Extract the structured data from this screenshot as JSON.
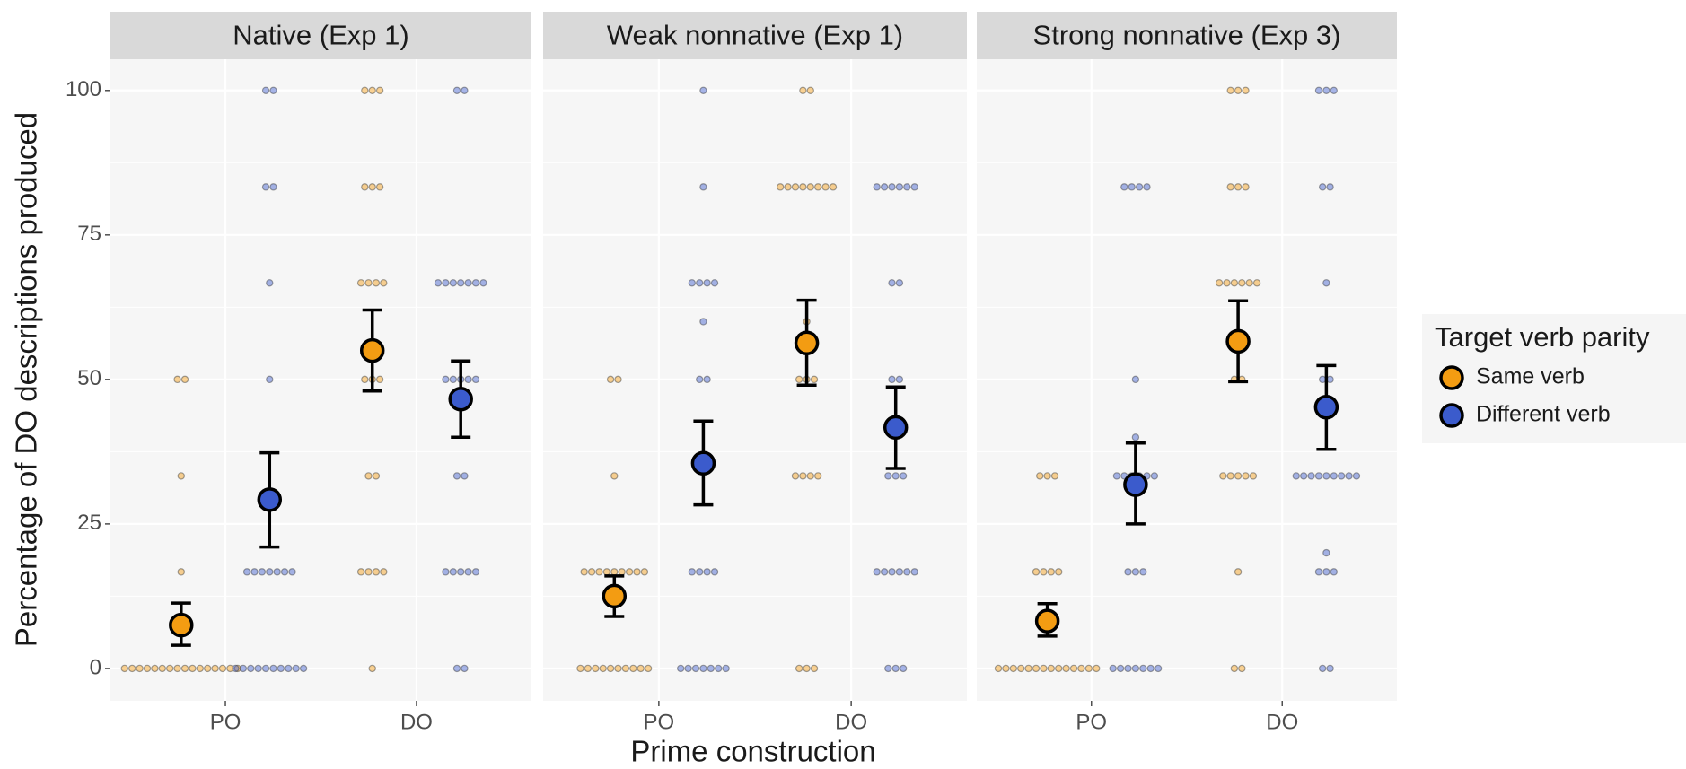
{
  "chart_data": {
    "type": "dotplot",
    "ylabel": "Percentage of DO descriptions produced",
    "xlabel": "Prime construction",
    "ylim": [
      -5.6,
      105.4
    ],
    "yticks": [
      0,
      25,
      50,
      75,
      100
    ],
    "grid": true,
    "legend": {
      "title": "Target verb parity",
      "position": "right"
    },
    "series": [
      {
        "name": "Same verb",
        "color": "#f39c12"
      },
      {
        "name": "Different verb",
        "color": "#3b5bcc"
      }
    ],
    "facets": [
      {
        "title": "Native (Exp 1)",
        "categories": [
          "PO",
          "DO"
        ],
        "series": [
          {
            "values": [
              7.5,
              55
            ],
            "lower": [
              4,
              48
            ],
            "upper": [
              11.3,
              62
            ],
            "points": [
              [
                0,
                0,
                0,
                0,
                0,
                0,
                0,
                0,
                0,
                0,
                0,
                0,
                0,
                0,
                0,
                0,
                16.7,
                33.3,
                50,
                50
              ],
              [
                0,
                16.7,
                16.7,
                16.7,
                16.7,
                33.3,
                33.3,
                50,
                50,
                50,
                66.7,
                66.7,
                66.7,
                66.7,
                83.3,
                83.3,
                83.3,
                100,
                100,
                100
              ]
            ]
          },
          {
            "values": [
              29.2,
              46.6
            ],
            "lower": [
              21,
              40
            ],
            "upper": [
              37.3,
              53.2
            ],
            "points": [
              [
                0,
                0,
                0,
                0,
                0,
                0,
                0,
                0,
                0,
                0,
                16.7,
                16.7,
                16.7,
                16.7,
                16.7,
                16.7,
                16.7,
                50,
                66.7,
                83.3,
                83.3,
                100,
                100
              ],
              [
                0,
                0,
                16.7,
                16.7,
                16.7,
                16.7,
                16.7,
                33.3,
                33.3,
                50,
                50,
                50,
                50,
                50,
                66.7,
                66.7,
                66.7,
                66.7,
                66.7,
                66.7,
                66.7,
                100,
                100
              ]
            ]
          }
        ]
      },
      {
        "title": "Weak nonnative (Exp 1)",
        "categories": [
          "PO",
          "DO"
        ],
        "series": [
          {
            "values": [
              12.5,
              56.3
            ],
            "lower": [
              9,
              49
            ],
            "upper": [
              16,
              63.7
            ],
            "points": [
              [
                0,
                0,
                0,
                0,
                0,
                0,
                0,
                0,
                0,
                0,
                16.7,
                16.7,
                16.7,
                16.7,
                16.7,
                16.7,
                16.7,
                16.7,
                16.7,
                33.3,
                50,
                50
              ],
              [
                0,
                0,
                0,
                33.3,
                33.3,
                33.3,
                33.3,
                50,
                50,
                50,
                60,
                83.3,
                83.3,
                83.3,
                83.3,
                83.3,
                83.3,
                83.3,
                83.3,
                100,
                100
              ]
            ]
          },
          {
            "values": [
              35.5,
              41.7
            ],
            "lower": [
              28.3,
              34.6
            ],
            "upper": [
              42.8,
              48.7
            ],
            "points": [
              [
                0,
                0,
                0,
                0,
                0,
                0,
                0,
                16.7,
                16.7,
                16.7,
                16.7,
                50,
                50,
                60,
                66.7,
                66.7,
                66.7,
                66.7,
                83.3,
                100
              ],
              [
                0,
                0,
                0,
                16.7,
                16.7,
                16.7,
                16.7,
                16.7,
                16.7,
                33.3,
                33.3,
                33.3,
                50,
                50,
                66.7,
                66.7,
                83.3,
                83.3,
                83.3,
                83.3,
                83.3,
                83.3
              ]
            ]
          }
        ]
      },
      {
        "title": "Strong nonnative (Exp 3)",
        "categories": [
          "PO",
          "DO"
        ],
        "series": [
          {
            "values": [
              8.2,
              56.6
            ],
            "lower": [
              5.6,
              49.6
            ],
            "upper": [
              11.2,
              63.6
            ],
            "points": [
              [
                0,
                0,
                0,
                0,
                0,
                0,
                0,
                0,
                0,
                0,
                0,
                0,
                0,
                0,
                16.7,
                16.7,
                16.7,
                16.7,
                33.3,
                33.3,
                33.3
              ],
              [
                0,
                0,
                16.7,
                33.3,
                33.3,
                33.3,
                33.3,
                33.3,
                50,
                50,
                66.7,
                66.7,
                66.7,
                66.7,
                66.7,
                66.7,
                83.3,
                83.3,
                83.3,
                100,
                100,
                100
              ]
            ]
          },
          {
            "values": [
              31.8,
              45.2
            ],
            "lower": [
              25,
              37.9
            ],
            "upper": [
              39,
              52.4
            ],
            "points": [
              [
                0,
                0,
                0,
                0,
                0,
                0,
                0,
                16.7,
                16.7,
                16.7,
                33.3,
                33.3,
                33.3,
                33.3,
                33.3,
                33.3,
                40,
                50,
                83.3,
                83.3,
                83.3,
                83.3
              ],
              [
                0,
                0,
                16.7,
                16.7,
                16.7,
                20,
                33.3,
                33.3,
                33.3,
                33.3,
                33.3,
                33.3,
                33.3,
                33.3,
                33.3,
                50,
                50,
                66.7,
                83.3,
                83.3,
                100,
                100,
                100
              ]
            ]
          }
        ]
      }
    ]
  }
}
